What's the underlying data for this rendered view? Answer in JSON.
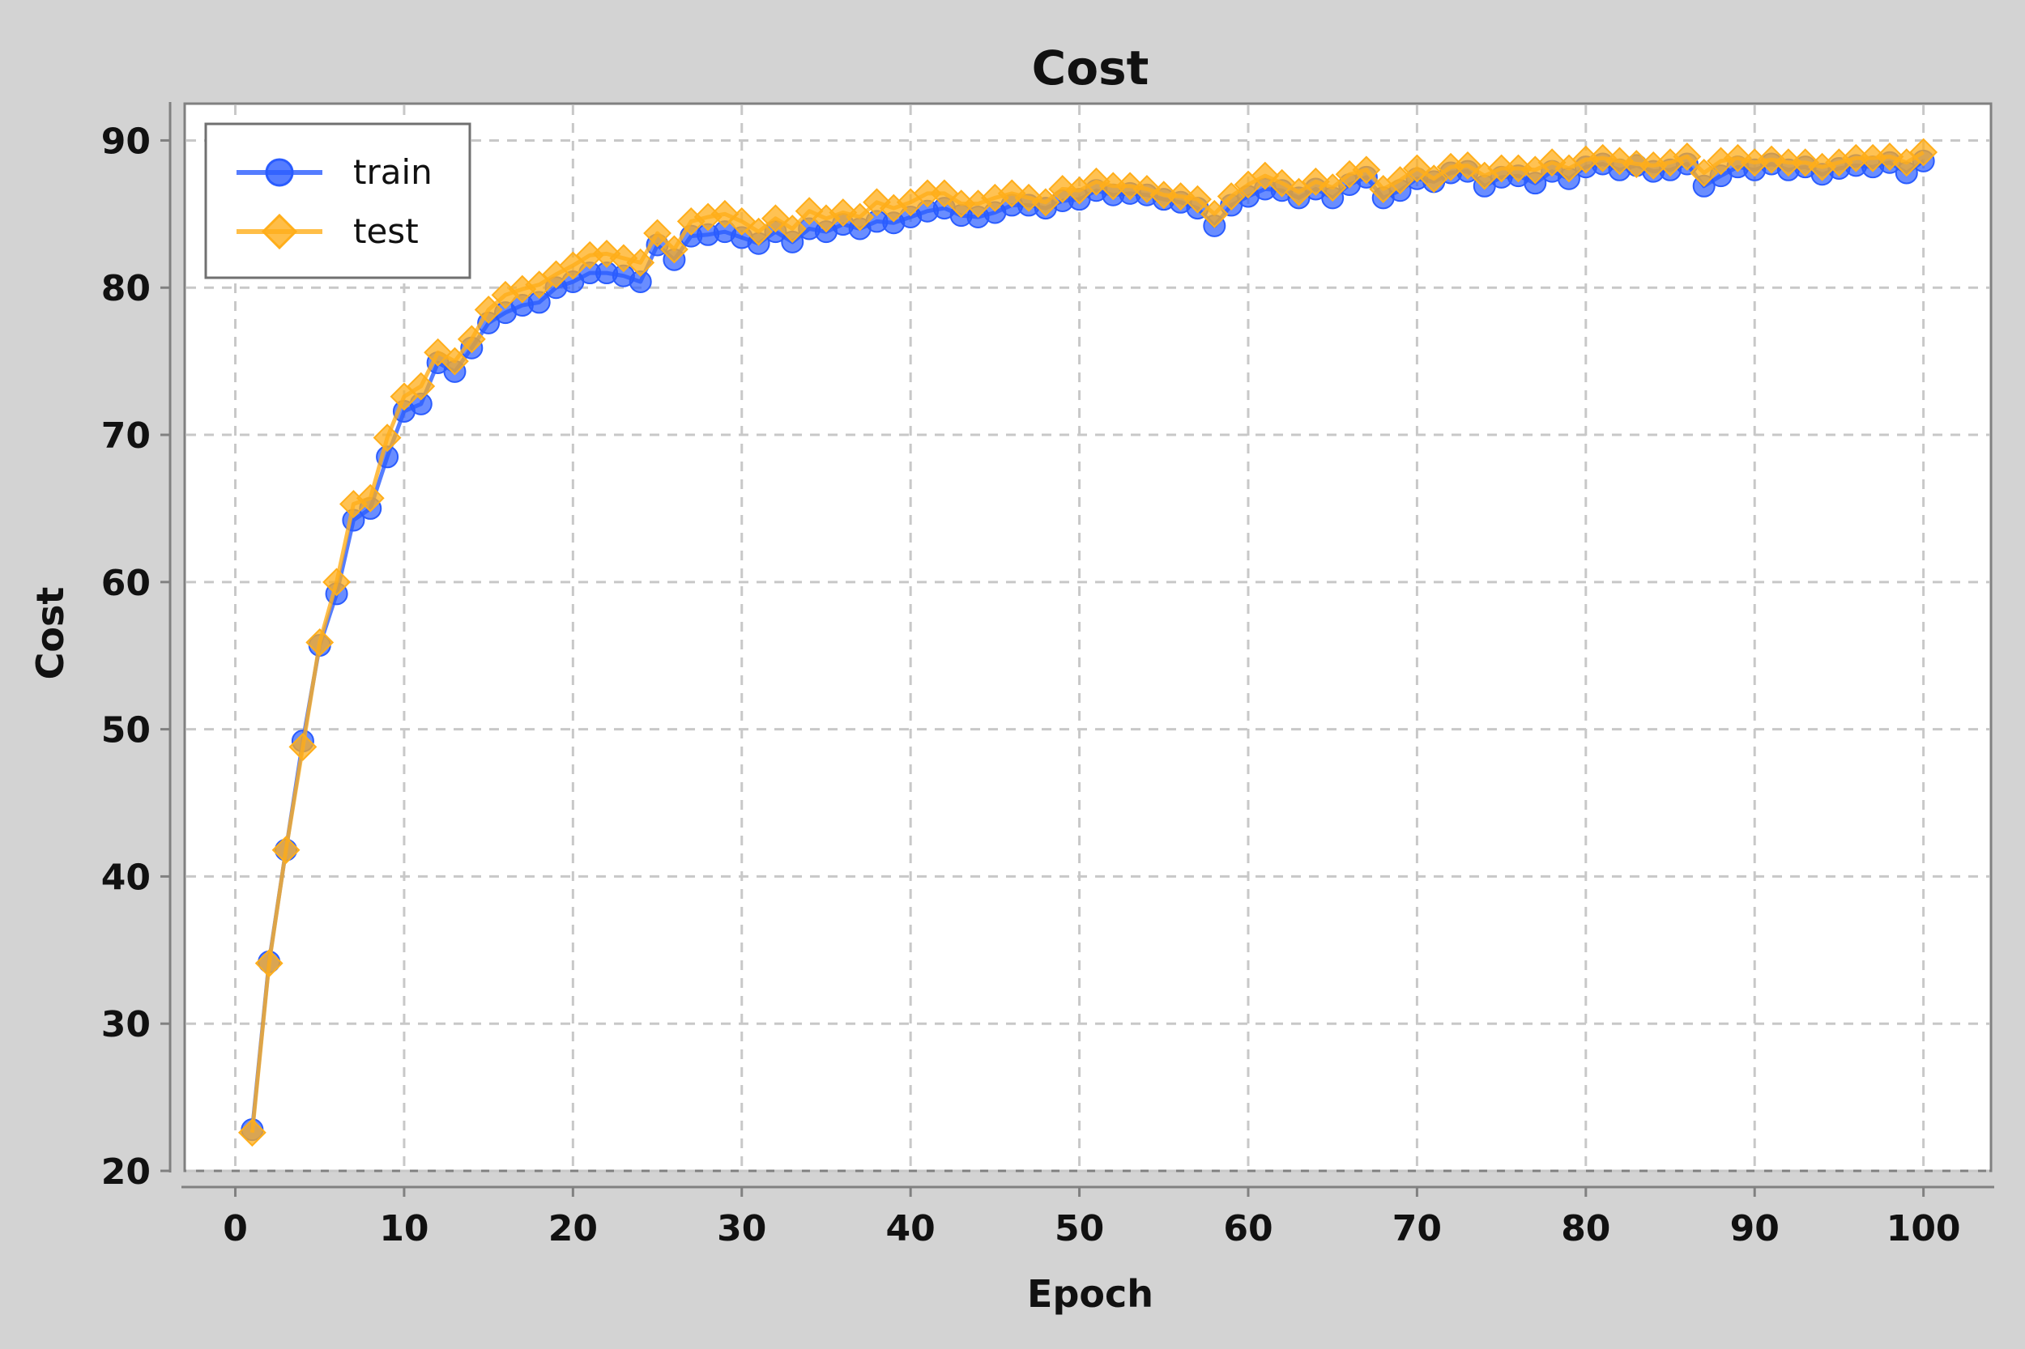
{
  "chart_data": {
    "type": "line",
    "title": "Cost",
    "xlabel": "Epoch",
    "ylabel": "Cost",
    "xlim": [
      -3,
      104
    ],
    "ylim": [
      20,
      92.5
    ],
    "xticks": [
      0,
      10,
      20,
      30,
      40,
      50,
      60,
      70,
      80,
      90,
      100
    ],
    "yticks": [
      20,
      30,
      40,
      50,
      60,
      70,
      80,
      90
    ],
    "grid": true,
    "legend_position": "top-left",
    "x": [
      1,
      2,
      3,
      4,
      5,
      6,
      7,
      8,
      9,
      10,
      11,
      12,
      13,
      14,
      15,
      16,
      17,
      18,
      19,
      20,
      21,
      22,
      23,
      24,
      25,
      26,
      27,
      28,
      29,
      30,
      31,
      32,
      33,
      34,
      35,
      36,
      37,
      38,
      39,
      40,
      41,
      42,
      43,
      44,
      45,
      46,
      47,
      48,
      49,
      50,
      51,
      52,
      53,
      54,
      55,
      56,
      57,
      58,
      59,
      60,
      61,
      62,
      63,
      64,
      65,
      66,
      67,
      68,
      69,
      70,
      71,
      72,
      73,
      74,
      75,
      76,
      77,
      78,
      79,
      80,
      81,
      82,
      83,
      84,
      85,
      86,
      87,
      88,
      89,
      90,
      91,
      92,
      93,
      94,
      95,
      96,
      97,
      98,
      99,
      100
    ],
    "series": [
      {
        "name": "train",
        "color": "#2a5cff",
        "marker": "circle",
        "values": [
          22.8,
          34.2,
          41.8,
          49.2,
          55.7,
          59.2,
          64.2,
          65.0,
          68.5,
          71.6,
          72.1,
          74.9,
          74.3,
          75.9,
          77.6,
          78.3,
          78.8,
          79.0,
          80.0,
          80.4,
          81.0,
          81.0,
          80.8,
          80.4,
          82.9,
          81.9,
          83.5,
          83.6,
          83.8,
          83.4,
          83.0,
          83.8,
          83.1,
          84.0,
          83.8,
          84.3,
          84.0,
          84.5,
          84.4,
          84.8,
          85.2,
          85.4,
          84.9,
          84.8,
          85.1,
          85.6,
          85.6,
          85.4,
          85.9,
          86.0,
          86.6,
          86.3,
          86.4,
          86.3,
          86.0,
          85.8,
          85.4,
          84.2,
          85.6,
          86.2,
          86.7,
          86.6,
          86.1,
          86.7,
          86.1,
          87.0,
          87.5,
          86.1,
          86.6,
          87.4,
          87.2,
          87.8,
          87.9,
          86.9,
          87.5,
          87.6,
          87.1,
          87.9,
          87.4,
          88.2,
          88.4,
          88.0,
          88.3,
          87.9,
          88.0,
          88.4,
          86.9,
          87.6,
          88.2,
          88.0,
          88.4,
          88.0,
          88.2,
          87.7,
          88.1,
          88.3,
          88.2,
          88.5,
          87.8,
          88.6
        ]
      },
      {
        "name": "test",
        "color": "#ffae1a",
        "marker": "diamond",
        "values": [
          22.6,
          34.1,
          41.8,
          48.8,
          55.9,
          60.0,
          65.3,
          65.7,
          69.8,
          72.6,
          73.3,
          75.6,
          75.0,
          76.5,
          78.5,
          79.5,
          79.9,
          80.2,
          80.9,
          81.5,
          82.2,
          82.3,
          82.0,
          81.7,
          83.7,
          82.6,
          84.5,
          84.8,
          85.0,
          84.5,
          83.8,
          84.7,
          84.0,
          85.2,
          84.7,
          85.1,
          84.8,
          85.8,
          85.4,
          85.8,
          86.4,
          86.4,
          85.7,
          85.7,
          86.1,
          86.4,
          86.1,
          85.8,
          86.7,
          86.6,
          87.2,
          86.9,
          86.9,
          86.7,
          86.3,
          86.2,
          86.0,
          85.0,
          86.2,
          87.0,
          87.6,
          87.1,
          86.5,
          87.2,
          86.8,
          87.7,
          88.0,
          86.7,
          87.3,
          88.1,
          87.4,
          88.2,
          88.3,
          87.6,
          88.1,
          88.1,
          88.0,
          88.5,
          88.1,
          88.7,
          88.8,
          88.6,
          88.4,
          88.3,
          88.5,
          88.9,
          87.8,
          88.6,
          88.8,
          88.5,
          88.7,
          88.5,
          88.5,
          88.2,
          88.5,
          88.8,
          88.8,
          88.9,
          88.5,
          89.2
        ]
      }
    ]
  }
}
